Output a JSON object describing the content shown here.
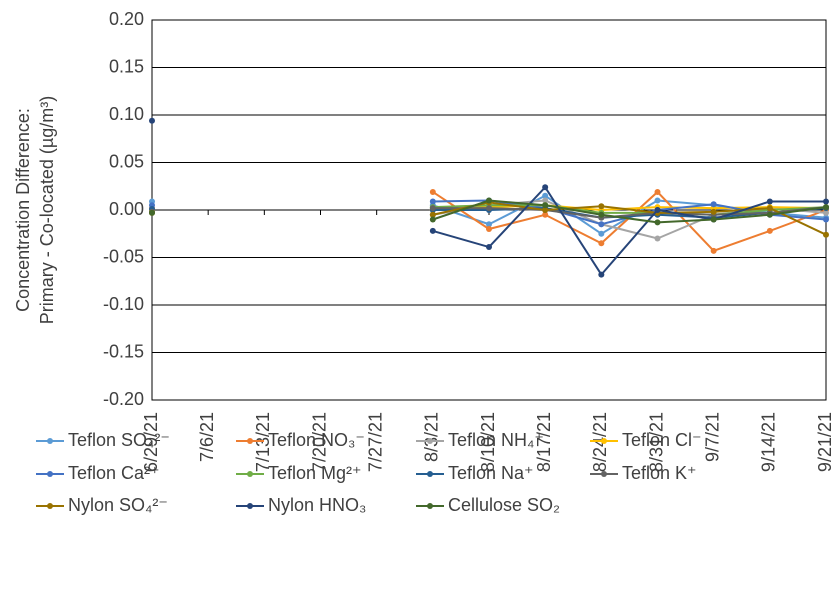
{
  "chart_data": {
    "type": "line",
    "y_label": [
      "Concentration Difference:",
      "Primary - Co-located (µg/m³)"
    ],
    "categories": [
      "6/29/21",
      "7/6/21",
      "7/13/21",
      "7/20/21",
      "7/27/21",
      "8/3/21",
      "8/10/21",
      "8/17/21",
      "8/24/21",
      "8/31/21",
      "9/7/21",
      "9/14/21",
      "9/21/21"
    ],
    "ylim": [
      -0.2,
      0.2
    ],
    "yticks": [
      {
        "value": -0.2,
        "label": "-0.20"
      },
      {
        "value": -0.15,
        "label": "-0.15"
      },
      {
        "value": -0.1,
        "label": "-0.10"
      },
      {
        "value": -0.05,
        "label": "-0.05"
      },
      {
        "value": 0,
        "label": "0.00"
      },
      {
        "value": 0.05,
        "label": "0.05"
      },
      {
        "value": 0.1,
        "label": "0.10"
      },
      {
        "value": 0.15,
        "label": "0.15"
      },
      {
        "value": 0.2,
        "label": "0.20"
      }
    ],
    "grid": true,
    "legend": "bottom",
    "series": [
      {
        "name": "Teflon SO₄²⁻",
        "color": "#5b9bd5",
        "values": [
          0.009,
          null,
          null,
          null,
          null,
          0.005,
          -0.015,
          0.015,
          -0.025,
          0.01,
          0.005,
          -0.003,
          -0.008
        ]
      },
      {
        "name": "Teflon NO₃⁻",
        "color": "#ed7d31",
        "values": [
          0.002,
          null,
          null,
          null,
          null,
          0.019,
          -0.02,
          -0.005,
          -0.035,
          0.019,
          -0.043,
          -0.022,
          0.0
        ]
      },
      {
        "name": "Teflon NH₄⁺",
        "color": "#a5a5a5",
        "values": [
          0.001,
          null,
          null,
          null,
          null,
          -0.005,
          0.005,
          0.01,
          -0.015,
          -0.03,
          -0.005,
          0.002,
          -0.003
        ]
      },
      {
        "name": "Teflon Cl⁻",
        "color": "#ffc000",
        "values": [
          0.0,
          null,
          null,
          null,
          null,
          0.0,
          0.003,
          0.005,
          0.0,
          0.003,
          0.002,
          0.003,
          0.002
        ]
      },
      {
        "name": "Teflon Ca²⁺",
        "color": "#4472c4",
        "values": [
          0.005,
          null,
          null,
          null,
          null,
          0.009,
          0.01,
          0.002,
          -0.015,
          0.0,
          0.006,
          -0.005,
          -0.01
        ]
      },
      {
        "name": "Teflon Mg²⁺",
        "color": "#70ad47",
        "values": [
          -0.002,
          null,
          null,
          null,
          null,
          0.003,
          0.005,
          0.005,
          -0.003,
          -0.003,
          -0.005,
          0.0,
          0.003
        ]
      },
      {
        "name": "Teflon Na⁺",
        "color": "#255e91",
        "values": [
          0.001,
          null,
          null,
          null,
          null,
          0.0,
          0.0,
          0.002,
          -0.008,
          -0.005,
          -0.008,
          -0.003,
          0.002
        ]
      },
      {
        "name": "Teflon K⁺",
        "color": "#636363",
        "values": [
          -0.002,
          null,
          null,
          null,
          null,
          0.002,
          0.002,
          0.0,
          -0.008,
          -0.003,
          -0.005,
          -0.003,
          0.003
        ]
      },
      {
        "name": "Nylon SO₄²⁻",
        "color": "#997300",
        "values": [
          -0.003,
          null,
          null,
          null,
          null,
          -0.005,
          0.008,
          0.0,
          0.004,
          -0.003,
          -0.002,
          0.002,
          -0.026
        ]
      },
      {
        "name": "Nylon HNO₃",
        "color": "#264478",
        "values": [
          0.094,
          null,
          null,
          null,
          null,
          -0.022,
          -0.039,
          0.024,
          -0.068,
          0.0,
          -0.01,
          0.009,
          0.009
        ]
      },
      {
        "name": "Cellulose SO₂",
        "color": "#43682b",
        "values": [
          -0.003,
          null,
          null,
          null,
          null,
          -0.01,
          0.01,
          0.005,
          -0.005,
          -0.013,
          -0.01,
          -0.005,
          0.003
        ]
      }
    ]
  }
}
